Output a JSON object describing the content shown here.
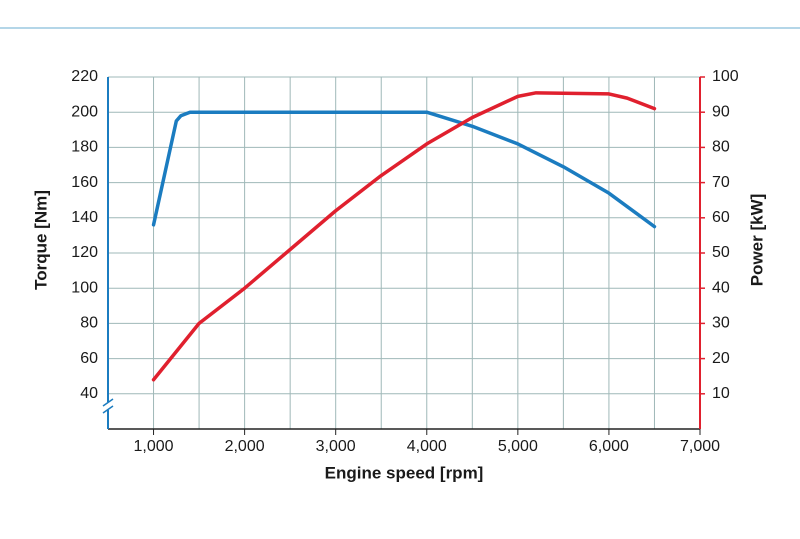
{
  "chart_data": {
    "type": "line",
    "x_label": "Engine speed [rpm]",
    "y_label": "Torque [Nm]",
    "y2_label": "Power [kW]",
    "xlim": [
      500,
      7000
    ],
    "xticks": [
      {
        "value": 1000,
        "label": "1,000"
      },
      {
        "value": 2000,
        "label": "2,000"
      },
      {
        "value": 3000,
        "label": "3,000"
      },
      {
        "value": 4000,
        "label": "4,000"
      },
      {
        "value": 5000,
        "label": "5,000"
      },
      {
        "value": 6000,
        "label": "6,000"
      },
      {
        "value": 7000,
        "label": "7,000"
      }
    ],
    "ylim": [
      20,
      220
    ],
    "yticks": [
      40,
      60,
      80,
      100,
      120,
      140,
      160,
      180,
      200,
      220
    ],
    "y2lim": [
      0,
      100
    ],
    "y2ticks": [
      10,
      20,
      30,
      40,
      50,
      60,
      70,
      80,
      90,
      100
    ],
    "grid": true,
    "series": [
      {
        "color": "#1b7cc0",
        "x": [
          1000,
          1250,
          1300,
          1400,
          2000,
          3000,
          4000,
          4500,
          5000,
          5500,
          6000,
          6500
        ],
        "values": [
          136,
          195,
          198,
          200,
          200,
          200,
          200,
          192,
          182,
          169,
          154,
          135
        ]
      },
      {
        "color": "#e0202e",
        "axis": "y2",
        "x": [
          1000,
          1500,
          2000,
          2500,
          3000,
          3500,
          4000,
          4500,
          5000,
          5200,
          6000,
          6200,
          6500
        ],
        "values": [
          14,
          30,
          40,
          51,
          62,
          72,
          81,
          88.5,
          94.5,
          95.5,
          95.2,
          94,
          91
        ]
      }
    ]
  }
}
